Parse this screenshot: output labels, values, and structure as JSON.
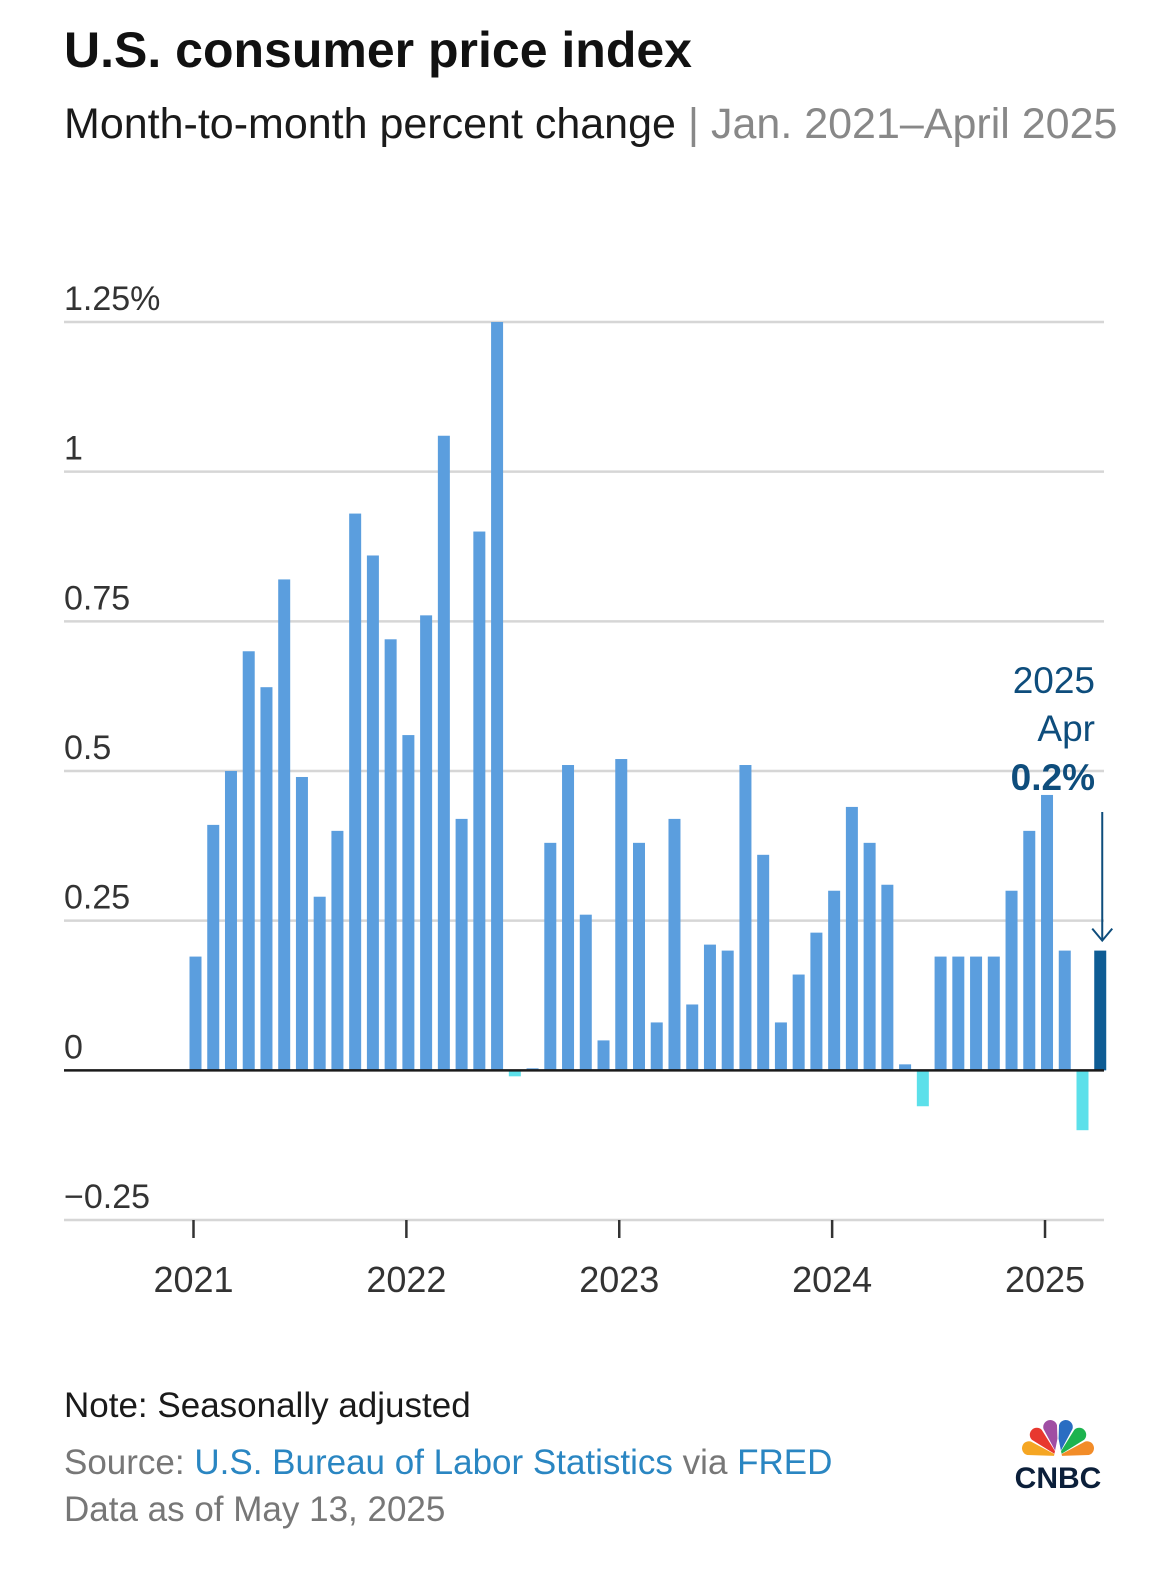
{
  "header": {
    "title": "U.S. consumer price index",
    "subtitle_main": "Month-to-month percent change",
    "subtitle_sep": " | ",
    "subtitle_range": "Jan. 2021–April 2025"
  },
  "chart_data": {
    "type": "bar",
    "title": "U.S. consumer price index",
    "subtitle": "Month-to-month percent change | Jan. 2021–April 2025",
    "x_start": "2021-01",
    "x_end": "2025-04",
    "values": [
      0.19,
      0.41,
      0.5,
      0.7,
      0.64,
      0.82,
      0.49,
      0.29,
      0.4,
      0.93,
      0.86,
      0.72,
      0.56,
      0.76,
      1.06,
      0.42,
      0.9,
      1.25,
      -0.01,
      0.0,
      0.38,
      0.51,
      0.26,
      0.05,
      0.52,
      0.38,
      0.08,
      0.42,
      0.11,
      0.21,
      0.2,
      0.51,
      0.36,
      0.08,
      0.16,
      0.23,
      0.3,
      0.44,
      0.38,
      0.31,
      0.01,
      -0.06,
      0.19,
      0.19,
      0.19,
      0.19,
      0.3,
      0.4,
      0.46,
      0.2,
      -0.1,
      0.2
    ],
    "ylim": [
      -0.25,
      1.25
    ],
    "yticks": [
      {
        "value": -0.25,
        "label": "−0.25"
      },
      {
        "value": 0,
        "label": "0"
      },
      {
        "value": 0.25,
        "label": "0.25"
      },
      {
        "value": 0.5,
        "label": "0.5"
      },
      {
        "value": 0.75,
        "label": "0.75"
      },
      {
        "value": 1,
        "label": "1"
      },
      {
        "value": 1.25,
        "label": "1.25%"
      }
    ],
    "xticks": [
      "2021",
      "2022",
      "2023",
      "2024",
      "2025"
    ],
    "grid": true,
    "colors": {
      "positive": "#5b9ede",
      "negative": "#5ce0ea",
      "highlight": "#0e5c94",
      "annotation": "#0e4d7c",
      "grid": "#d6d6d6",
      "zero": "#1a1a1a"
    },
    "highlight_index": 51,
    "annotation": {
      "line1": "2025",
      "line2": "Apr",
      "value": "0.2%"
    }
  },
  "footer": {
    "note": "Note: Seasonally adjusted",
    "source_prefix": "Source: ",
    "source_org": "U.S. Bureau of Labor Statistics",
    "source_via": " via ",
    "source_fred": "FRED",
    "asof": "Data as of May 13, 2025",
    "logo_text": "CNBC"
  },
  "logo_colors": [
    "#f5a623",
    "#e8382f",
    "#a04ea3",
    "#2a6dc2",
    "#1db34f",
    "#f28c28"
  ]
}
